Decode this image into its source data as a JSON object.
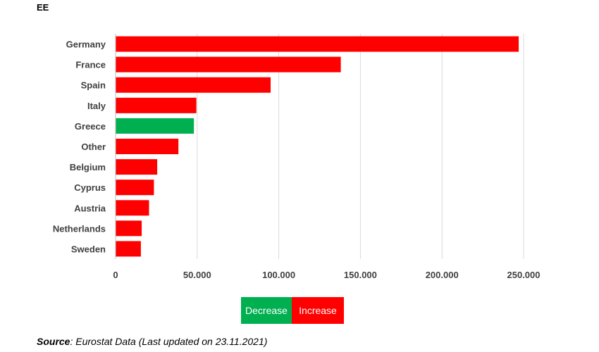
{
  "title": "EE",
  "chart_data": {
    "type": "bar",
    "orientation": "horizontal",
    "categories": [
      "Germany",
      "France",
      "Spain",
      "Italy",
      "Greece",
      "Other",
      "Belgium",
      "Cyprus",
      "Austria",
      "Netherlands",
      "Sweden"
    ],
    "values": [
      247000,
      138000,
      95000,
      49500,
      48000,
      38500,
      25500,
      23500,
      20500,
      16000,
      15500
    ],
    "status": [
      "Increase",
      "Increase",
      "Increase",
      "Increase",
      "Decrease",
      "Increase",
      "Increase",
      "Increase",
      "Increase",
      "Increase",
      "Increase"
    ],
    "xlim": [
      0,
      250000
    ],
    "xticks": [
      0,
      50000,
      100000,
      150000,
      200000,
      250000
    ],
    "xtick_labels": [
      "0",
      "50.000",
      "100.000",
      "150.000",
      "200.000",
      "250.000"
    ],
    "grid": "vertical",
    "colors": {
      "Increase": "#ff0000",
      "Decrease": "#00b050"
    }
  },
  "legend": {
    "decrease_label": "Decrease",
    "increase_label": "Increase",
    "decrease_color": "#00b050",
    "increase_color": "#ff0000"
  },
  "source": {
    "label": "Source",
    "text": ": Eurostat Data (Last updated on 23.11.2021)"
  }
}
